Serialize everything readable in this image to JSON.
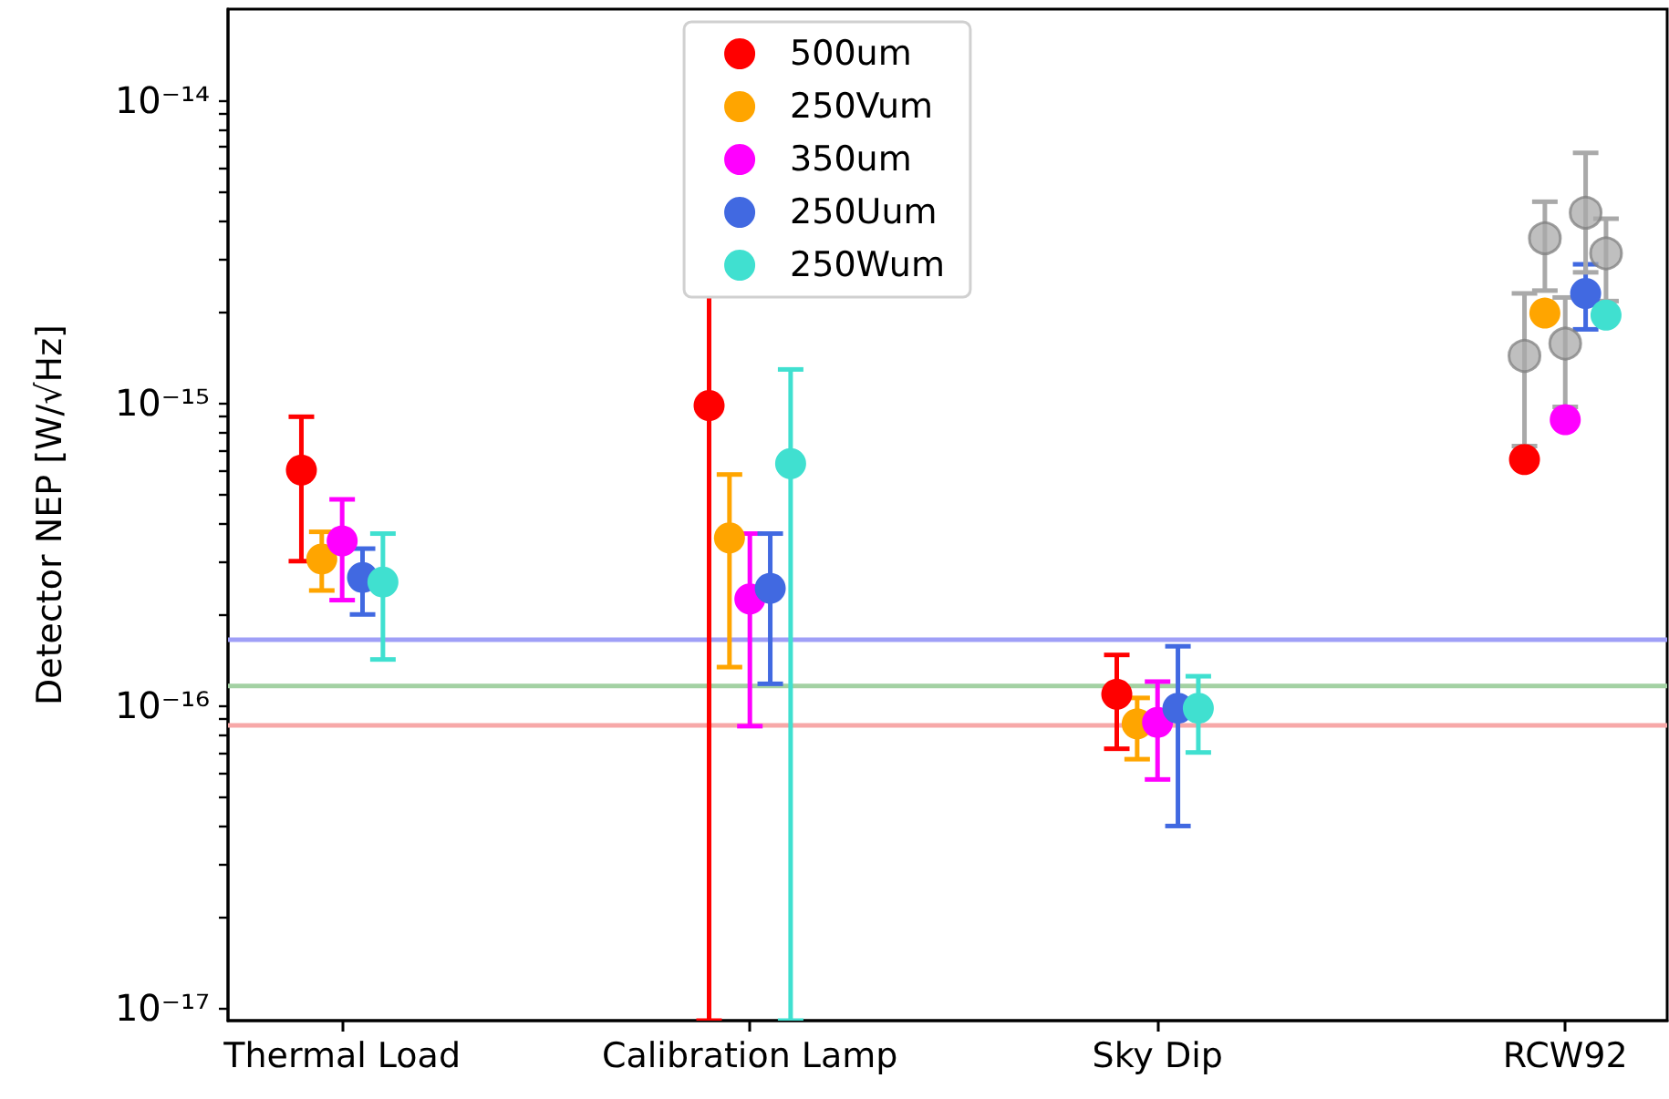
{
  "chart_data": {
    "type": "scatter",
    "ylabel": "Detector NEP [W/√Hz]",
    "log": "y",
    "marker": "circle",
    "legend": "top",
    "grid": false,
    "categories": [
      "Thermal Load",
      "Calibration Lamp",
      "Sky Dip",
      "RCW92"
    ],
    "ylim": [
      9.1e-18,
      2e-14
    ],
    "yticks": [
      {
        "value": 1e-17,
        "label": "10⁻¹⁷"
      },
      {
        "value": 2e-17,
        "label": null
      },
      {
        "value": 3e-17,
        "label": null
      },
      {
        "value": 4e-17,
        "label": null
      },
      {
        "value": 5e-17,
        "label": null
      },
      {
        "value": 6e-17,
        "label": null
      },
      {
        "value": 7e-17,
        "label": null
      },
      {
        "value": 8e-17,
        "label": null
      },
      {
        "value": 9e-17,
        "label": null
      },
      {
        "value": 1e-16,
        "label": "10⁻¹⁶"
      },
      {
        "value": 2e-16,
        "label": null
      },
      {
        "value": 3e-16,
        "label": null
      },
      {
        "value": 4e-16,
        "label": null
      },
      {
        "value": 5e-16,
        "label": null
      },
      {
        "value": 6e-16,
        "label": null
      },
      {
        "value": 7e-16,
        "label": null
      },
      {
        "value": 8e-16,
        "label": null
      },
      {
        "value": 9e-16,
        "label": null
      },
      {
        "value": 1e-15,
        "label": "10⁻¹⁵"
      },
      {
        "value": 2e-15,
        "label": null
      },
      {
        "value": 3e-15,
        "label": null
      },
      {
        "value": 4e-15,
        "label": null
      },
      {
        "value": 5e-15,
        "label": null
      },
      {
        "value": 6e-15,
        "label": null
      },
      {
        "value": 7e-15,
        "label": null
      },
      {
        "value": 8e-15,
        "label": null
      },
      {
        "value": 9e-15,
        "label": null
      },
      {
        "value": 1e-14,
        "label": "10⁻¹⁴"
      }
    ],
    "ref_lines": [
      {
        "axis": "y",
        "value": 1.65e-16,
        "label": null,
        "color": "#9f9ff7"
      },
      {
        "axis": "y",
        "value": 1.16e-16,
        "label": null,
        "color": "#a3d1a3"
      },
      {
        "axis": "y",
        "value": 8.6e-17,
        "label": null,
        "color": "#f7a8a8"
      }
    ],
    "series": [
      {
        "name": "500um",
        "color": "#ff0000",
        "x": [
          "Thermal Load",
          "Calibration Lamp",
          "Sky Dip",
          "RCW92"
        ],
        "values": [
          6e-16,
          9.8e-16,
          1.09e-16,
          6.5e-16
        ],
        "errors": [
          [
            3e-16,
            9e-16
          ],
          [
            9.1e-18,
            2.34e-15
          ],
          [
            7.2e-17,
            1.47e-16
          ],
          null
        ]
      },
      {
        "name": "250Vum",
        "color": "#ffa500",
        "x": [
          "Thermal Load",
          "Calibration Lamp",
          "Sky Dip",
          "RCW92"
        ],
        "values": [
          3.05e-16,
          3.58e-16,
          8.7e-17,
          1.98e-15
        ],
        "errors": [
          [
            2.4e-16,
            3.75e-16
          ],
          [
            1.34e-16,
            5.8e-16
          ],
          [
            6.65e-17,
            1.06e-16
          ],
          null
        ]
      },
      {
        "name": "350um",
        "color": "#ff00ff",
        "x": [
          "Thermal Load",
          "Calibration Lamp",
          "Sky Dip",
          "RCW92"
        ],
        "values": [
          3.5e-16,
          2.25e-16,
          8.8e-17,
          8.8e-16
        ],
        "errors": [
          [
            2.23e-16,
            4.8e-16
          ],
          [
            8.55e-17,
            3.7e-16
          ],
          [
            5.7e-17,
            1.2e-16
          ],
          null
        ]
      },
      {
        "name": "250Uum",
        "color": "#4169e1",
        "x": [
          "Thermal Load",
          "Calibration Lamp",
          "Sky Dip",
          "RCW92"
        ],
        "values": [
          2.65e-16,
          2.44e-16,
          9.8e-17,
          2.3e-15
        ],
        "errors": [
          [
            2e-16,
            3.3e-16
          ],
          [
            1.18e-16,
            3.7e-16
          ],
          [
            4e-17,
            1.57e-16
          ],
          [
            1.75e-15,
            2.87e-15
          ]
        ]
      },
      {
        "name": "250Wum",
        "color": "#40e0d0",
        "x": [
          "Thermal Load",
          "Calibration Lamp",
          "Sky Dip",
          "RCW92"
        ],
        "values": [
          2.56e-16,
          6.3e-16,
          9.8e-17,
          1.95e-15
        ],
        "errors": [
          [
            1.42e-16,
            3.7e-16
          ],
          [
            9.1e-18,
            1.29e-15
          ],
          [
            7e-17,
            1.25e-16
          ],
          null
        ]
      },
      {
        "color": "#a9a9a9",
        "x": [
          "RCW92",
          "RCW92",
          "RCW92",
          "RCW92",
          "RCW92"
        ],
        "values": [
          1.43e-15,
          3.5e-15,
          1.57e-15,
          4.25e-15,
          3.12e-15
        ],
        "errors": [
          [
            7.2e-16,
            2.3e-15
          ],
          [
            2.35e-15,
            4.62e-15
          ],
          [
            9.7e-16,
            2.23e-15
          ],
          [
            2.7e-15,
            6.7e-15
          ],
          [
            2.17e-15,
            4.06e-15
          ]
        ]
      }
    ]
  }
}
